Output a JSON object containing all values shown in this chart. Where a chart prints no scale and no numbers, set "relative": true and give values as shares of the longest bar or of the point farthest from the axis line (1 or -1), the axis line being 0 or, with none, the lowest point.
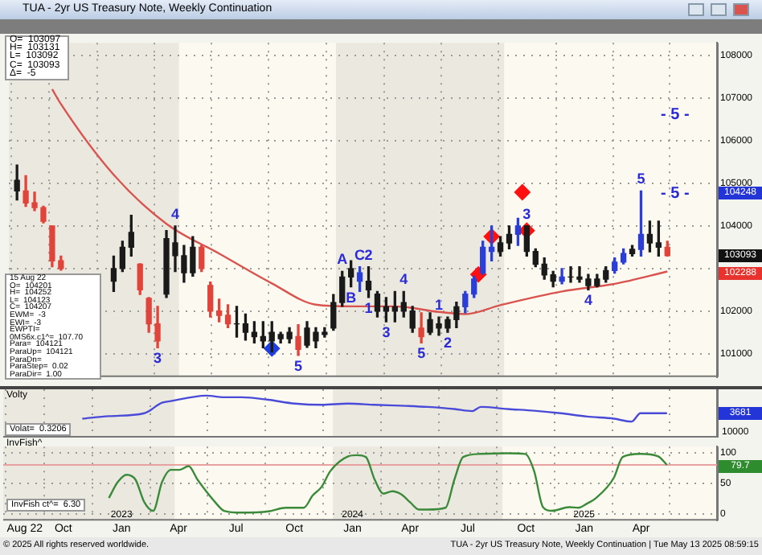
{
  "chart_data": [
    {
      "type": "candlestick",
      "title": "TUA - 2yr US Treasury Note, Weekly Continuation",
      "x": [
        "2022-07-11",
        "2022-07-25",
        "2022-08-08",
        "2022-08-22",
        "2022-09-05",
        "2022-09-19",
        "2022-12-12",
        "2022-12-26",
        "2023-01-09",
        "2023-01-23",
        "2023-02-06",
        "2023-02-20",
        "2023-03-06",
        "2023-03-20",
        "2023-04-03",
        "2023-04-17",
        "2023-05-01",
        "2023-05-15",
        "2023-05-29",
        "2023-06-12",
        "2023-06-26",
        "2023-07-10",
        "2023-07-24",
        "2023-08-07",
        "2023-08-21",
        "2023-09-04",
        "2023-09-18",
        "2023-10-02",
        "2023-10-16",
        "2023-10-30",
        "2023-11-13",
        "2023-11-27",
        "2023-12-11",
        "2023-12-25",
        "2024-01-08",
        "2024-01-22",
        "2024-02-05",
        "2024-02-19",
        "2024-03-04",
        "2024-03-18",
        "2024-04-01",
        "2024-04-15",
        "2024-04-29",
        "2024-05-13",
        "2024-05-27",
        "2024-06-10",
        "2024-06-24",
        "2024-07-08",
        "2024-07-22",
        "2024-08-05",
        "2024-08-19",
        "2024-09-02",
        "2024-09-16",
        "2024-09-30",
        "2024-10-14",
        "2024-10-28",
        "2024-11-11",
        "2024-11-25",
        "2024-12-09",
        "2024-12-23",
        "2025-01-06",
        "2025-01-20",
        "2025-02-03",
        "2025-02-17",
        "2025-03-03",
        "2025-03-17",
        "2025-03-31",
        "2025-04-14",
        "2025-04-28",
        "2025-05-12"
      ],
      "ohlc": [
        [
          104820,
          105430,
          104610,
          105070
        ],
        [
          104820,
          105180,
          104460,
          104540
        ],
        [
          104540,
          104790,
          104360,
          104430
        ],
        [
          104430,
          104460,
          104070,
          104110
        ],
        [
          104000,
          104000,
          103040,
          103180
        ],
        [
          103180,
          103290,
          102960,
          103000
        ],
        [
          102700,
          103290,
          102460,
          103000
        ],
        [
          103000,
          103640,
          102930,
          103500
        ],
        [
          103500,
          104250,
          103290,
          103850
        ],
        [
          103100,
          103110,
          102390,
          102500
        ],
        [
          102300,
          102320,
          101500,
          101700
        ],
        [
          101700,
          102110,
          101140,
          101300
        ],
        [
          102400,
          103890,
          102320,
          103700
        ],
        [
          103300,
          104000,
          102930,
          103600
        ],
        [
          102900,
          103540,
          102680,
          103300
        ],
        [
          102900,
          103750,
          102820,
          103500
        ],
        [
          103500,
          103540,
          102930,
          103000
        ],
        [
          102600,
          102680,
          101860,
          102000
        ],
        [
          102000,
          102280,
          101750,
          101900
        ],
        [
          101900,
          102150,
          101610,
          101700
        ],
        [
          101700,
          102110,
          101390,
          101700
        ],
        [
          101500,
          101930,
          101320,
          101700
        ],
        [
          101400,
          101750,
          101250,
          101500
        ],
        [
          101300,
          101750,
          101140,
          101400
        ],
        [
          101300,
          101750,
          101040,
          101500
        ],
        [
          101350,
          101500,
          101250,
          101450
        ],
        [
          101350,
          101610,
          101250,
          101500
        ],
        [
          101400,
          101680,
          100960,
          101100
        ],
        [
          101200,
          101750,
          101150,
          101600
        ],
        [
          101300,
          101610,
          101140,
          101500
        ],
        [
          101450,
          101610,
          101390,
          101500
        ],
        [
          101600,
          102390,
          101550,
          102200
        ],
        [
          102200,
          102930,
          102110,
          102800
        ],
        [
          102800,
          103180,
          102570,
          103000
        ],
        [
          102700,
          103040,
          102460,
          102900
        ],
        [
          102500,
          103040,
          102320,
          102700
        ],
        [
          102000,
          102460,
          101860,
          102400
        ],
        [
          102000,
          102320,
          101750,
          102100
        ],
        [
          102000,
          102460,
          101750,
          102100
        ],
        [
          102000,
          102460,
          101860,
          102200
        ],
        [
          101600,
          102110,
          101500,
          102000
        ],
        [
          101600,
          101960,
          101250,
          101400
        ],
        [
          101500,
          101960,
          101450,
          101800
        ],
        [
          101600,
          101860,
          101430,
          101700
        ],
        [
          101600,
          101860,
          101500,
          101800
        ],
        [
          101800,
          102210,
          101610,
          102100
        ],
        [
          102100,
          102460,
          101960,
          102400
        ],
        [
          102400,
          102820,
          102320,
          102750
        ],
        [
          102900,
          103640,
          102860,
          103500
        ],
        [
          103400,
          104000,
          103180,
          103500
        ],
        [
          103400,
          103750,
          103290,
          103600
        ],
        [
          103600,
          104000,
          103460,
          103800
        ],
        [
          103800,
          104180,
          103540,
          104000
        ],
        [
          103400,
          104000,
          103290,
          104000
        ],
        [
          103100,
          103460,
          103040,
          103400
        ],
        [
          102850,
          103250,
          102750,
          103100
        ],
        [
          102700,
          102930,
          102570,
          102850
        ],
        [
          102700,
          103000,
          102640,
          102800
        ],
        [
          102800,
          103040,
          102680,
          102800
        ],
        [
          102750,
          103040,
          102680,
          102800
        ],
        [
          102600,
          102860,
          102500,
          102750
        ],
        [
          102600,
          102860,
          102570,
          102750
        ],
        [
          102750,
          103040,
          102680,
          102950
        ],
        [
          102950,
          103250,
          102890,
          103150
        ],
        [
          103150,
          103460,
          103110,
          103350
        ],
        [
          103350,
          103540,
          103290,
          103450
        ],
        [
          103450,
          104820,
          103290,
          103800
        ],
        [
          103600,
          104110,
          103390,
          103800
        ],
        [
          103500,
          104110,
          103290,
          103600
        ],
        [
          103500,
          103640,
          103290,
          103300
        ]
      ],
      "colors": [
        "#1a1a1a",
        "#e0443a",
        "#e0443a",
        "#e0443a",
        "#e0443a",
        "#e0443a",
        "#1a1a1a",
        "#1a1a1a",
        "#1a1a1a",
        "#e0443a",
        "#e0443a",
        "#e0443a",
        "#1a1a1a",
        "#1a1a1a",
        "#1a1a1a",
        "#1a1a1a",
        "#e0443a",
        "#e0443a",
        "#e0443a",
        "#e0443a",
        "#1a1a1a",
        "#1a1a1a",
        "#1a1a1a",
        "#1a1a1a",
        "#1a1a1a",
        "#1a1a1a",
        "#1a1a1a",
        "#e0443a",
        "#1a1a1a",
        "#1a1a1a",
        "#1a1a1a",
        "#1a1a1a",
        "#1a1a1a",
        "#1a1a1a",
        "#2b3fd6",
        "#1a1a1a",
        "#1a1a1a",
        "#1a1a1a",
        "#1a1a1a",
        "#1a1a1a",
        "#1a1a1a",
        "#e0443a",
        "#1a1a1a",
        "#1a1a1a",
        "#1a1a1a",
        "#1a1a1a",
        "#2b3fd6",
        "#2b3fd6",
        "#2b3fd6",
        "#2b3fd6",
        "#1a1a1a",
        "#1a1a1a",
        "#2b3fd6",
        "#1a1a1a",
        "#1a1a1a",
        "#1a1a1a",
        "#1a1a1a",
        "#2b3fd6",
        "#1a1a1a",
        "#1a1a1a",
        "#1a1a1a",
        "#1a1a1a",
        "#1a1a1a",
        "#2b3fd6",
        "#2b3fd6",
        "#1a1a1a",
        "#2b3fd6",
        "#1a1a1a",
        "#1a1a1a",
        "#e0443a"
      ],
      "series": [
        {
          "type": "line",
          "color": "#d9534f",
          "x": [
            "2022-09-05",
            "2022-09-19",
            "2022-12-12",
            "2023-03-06",
            "2023-05-29",
            "2023-08-21",
            "2023-10-30",
            "2023-12-25",
            "2024-03-04",
            "2024-05-13",
            "2024-06-24",
            "2024-08-19",
            "2024-11-25",
            "2025-02-17",
            "2025-05-12"
          ],
          "values": [
            107210,
            106860,
            105200,
            104050,
            103350,
            102650,
            102150,
            102110,
            102110,
            101980,
            101930,
            102140,
            102460,
            102640,
            102930
          ]
        },
        {
          "type": "scatter",
          "marker": "diamond",
          "color": "#ff1010",
          "x": [
            "2024-07-15",
            "2024-08-05",
            "2024-09-23",
            "2024-09-30"
          ],
          "values": [
            102860,
            103750,
            104790,
            103890
          ]
        },
        {
          "type": "scatter",
          "marker": "diamond",
          "color": "#1f3fe0",
          "x": [
            "2023-08-21"
          ],
          "values": [
            101120
          ]
        }
      ],
      "xlim": [
        "2022-06-28",
        "2025-07-30"
      ],
      "xticks": [
        {
          "value": "2022-08-01",
          "label": null
        },
        {
          "value": "2022-10-01",
          "label": null
        },
        {
          "value": "2023-01-01",
          "label": null
        },
        {
          "value": "2023-04-01",
          "label": null
        },
        {
          "value": "2023-07-01",
          "label": null
        },
        {
          "value": "2023-10-01",
          "label": null
        },
        {
          "value": "2024-01-01",
          "label": null
        },
        {
          "value": "2024-04-01",
          "label": null
        },
        {
          "value": "2024-07-01",
          "label": null
        },
        {
          "value": "2024-10-01",
          "label": null
        },
        {
          "value": "2025-01-01",
          "label": null
        },
        {
          "value": "2025-04-01",
          "label": null
        }
      ],
      "ylim": [
        100450,
        108300
      ],
      "yticks": [
        101000,
        102000,
        {
          "value": 103000,
          "label": null
        },
        104000,
        105000,
        106000,
        107000,
        108000
      ],
      "tick_labels": "y",
      "grid": true,
      "bands": [
        {
          "axis": "x",
          "from": "2022-06-28",
          "to": "2023-03-26",
          "color": "#ebe8df"
        },
        {
          "axis": "x",
          "from": "2023-12-01",
          "to": "2024-08-25",
          "color": "#ebe8df"
        }
      ],
      "annotations": [
        "O=  103097",
        "H=  103131",
        "L=  103092",
        "C=  103093",
        "Δ=  -5",
        "15 Aug 22",
        "O=  104201",
        "H=  104252",
        "L=  104123",
        "C=  104207",
        "EWM=  -3",
        "EWI=  -3",
        "EWPTI=",
        "0MS6x.c1^=  107.70",
        "Para=  104121",
        "ParaUp=  104121",
        "ParaDn=",
        "ParaStep=  0.02",
        "ParaDir=  1.00",
        "- 5 -",
        "- 5 -",
        "104248",
        "103093",
        "102288",
        {
          "text": "4",
          "x": "2023-03-20",
          "y": 104000
        },
        {
          "text": "3",
          "x": "2023-02-20",
          "y": 101140
        },
        {
          "text": "5",
          "x": "2023-10-02",
          "y": 100960
        },
        {
          "text": "A",
          "x": "2023-12-11",
          "y": 102930
        },
        {
          "text": "C",
          "x": "2024-01-08",
          "y": 103040
        },
        {
          "text": "B",
          "x": "2023-12-25",
          "y": 102570
        },
        {
          "text": "1",
          "x": "2024-01-22",
          "y": 102320
        },
        {
          "text": "2",
          "x": "2024-01-22",
          "y": 103040
        },
        {
          "text": "3",
          "x": "2024-02-19",
          "y": 101750
        },
        {
          "text": "4",
          "x": "2024-03-18",
          "y": 102460
        },
        {
          "text": "1",
          "x": "2024-05-13",
          "y": 101860
        },
        {
          "text": "5",
          "x": "2024-04-15",
          "y": 101250
        },
        {
          "text": "2",
          "x": "2024-05-27",
          "y": 101500
        },
        {
          "text": "3",
          "x": "2024-09-30",
          "y": 104000
        },
        {
          "text": "4",
          "x": "2025-01-06",
          "y": 102500
        },
        {
          "text": "5",
          "x": "2025-03-31",
          "y": 104820
        }
      ]
    },
    {
      "type": "line",
      "title": "Volty",
      "relative": true,
      "color": "#4a4ad8",
      "x": [
        "2022-10-31",
        "2022-12-12",
        "2023-02-06",
        "2023-03-06",
        "2023-03-20",
        "2023-05-15",
        "2023-06-12",
        "2023-07-10",
        "2023-08-21",
        "2023-10-02",
        "2023-11-13",
        "2023-12-25",
        "2024-02-05",
        "2024-03-18",
        "2024-04-29",
        "2024-06-10",
        "2024-07-08",
        "2024-07-22",
        "2024-09-02",
        "2024-10-14",
        "2024-11-25",
        "2025-01-06",
        "2025-02-17",
        "2025-03-17",
        "2025-03-31",
        "2025-05-12"
      ],
      "values": [
        0.45,
        0.51,
        0.58,
        0.83,
        0.87,
        1,
        0.96,
        0.96,
        0.9,
        0.81,
        0.78,
        0.81,
        0.78,
        0.76,
        0.73,
        0.68,
        0.63,
        0.73,
        0.68,
        0.64,
        0.58,
        0.5,
        0.45,
        0.38,
        0.58,
        0.58
      ],
      "xlim": [
        "2022-06-28",
        "2025-07-30"
      ],
      "xticks": [
        {
          "value": "2022-08-01",
          "label": null
        },
        {
          "value": "2022-10-01",
          "label": null
        },
        {
          "value": "2023-01-01",
          "label": null
        },
        {
          "value": "2023-04-01",
          "label": null
        },
        {
          "value": "2023-07-01",
          "label": null
        },
        {
          "value": "2023-10-01",
          "label": null
        },
        {
          "value": "2024-01-01",
          "label": null
        },
        {
          "value": "2024-04-01",
          "label": null
        },
        {
          "value": "2024-07-01",
          "label": null
        },
        {
          "value": "2024-10-01",
          "label": null
        },
        {
          "value": "2025-01-01",
          "label": null
        },
        {
          "value": "2025-04-01",
          "label": null
        }
      ],
      "tick_labels": false,
      "grid": "x",
      "bands": [
        {
          "axis": "x",
          "from": "2022-06-28",
          "to": "2023-03-26",
          "color": "#ebe8df"
        },
        {
          "axis": "x",
          "from": "2023-12-01",
          "to": "2024-08-25",
          "color": "#ebe8df"
        }
      ],
      "annotations": [
        "Volat=  0.3206",
        "10000",
        "3681"
      ]
    },
    {
      "type": "line",
      "title": "InvFish^",
      "color": "#3a8a3a",
      "x": [
        "2022-12-12",
        "2022-12-26",
        "2023-01-09",
        "2023-01-23",
        "2023-02-06",
        "2023-02-20",
        "2023-03-06",
        "2023-03-20",
        "2023-04-03",
        "2023-04-17",
        "2023-05-01",
        "2023-05-29",
        "2023-06-12",
        "2023-07-10",
        "2023-08-21",
        "2023-09-18",
        "2023-10-16",
        "2023-10-30",
        "2023-11-13",
        "2023-11-27",
        "2023-12-25",
        "2024-01-08",
        "2024-01-22",
        "2024-02-05",
        "2024-02-19",
        "2024-03-04",
        "2024-03-18",
        "2024-04-01",
        "2024-04-15",
        "2024-04-29",
        "2024-05-27",
        "2024-06-10",
        "2024-06-24",
        "2024-07-22",
        "2024-09-02",
        "2024-09-30",
        "2024-10-14",
        "2024-10-28",
        "2024-11-11",
        "2024-12-09",
        "2024-12-23",
        "2025-01-06",
        "2025-01-20",
        "2025-02-17",
        "2025-03-03",
        "2025-03-31",
        "2025-04-28",
        "2025-05-12"
      ],
      "values": [
        26,
        52,
        64,
        56,
        19,
        5,
        52,
        72,
        72,
        78,
        56,
        19,
        5,
        2,
        4,
        10,
        10,
        30,
        44,
        70,
        94,
        96,
        93,
        56,
        33,
        37,
        32,
        19,
        7,
        7,
        10,
        56,
        93,
        98,
        99,
        98,
        70,
        11,
        5,
        11,
        10,
        17,
        26,
        59,
        93,
        98,
        94,
        80
      ],
      "xlim": [
        "2022-06-28",
        "2025-07-30"
      ],
      "xticks": [
        {
          "value": "2022-08-01",
          "label": "Aug 22"
        },
        {
          "value": "2022-10-01",
          "label": "Oct"
        },
        {
          "value": "2023-01-01",
          "label": "Jan"
        },
        {
          "value": "2023-04-01",
          "label": "Apr"
        },
        {
          "value": "2023-07-01",
          "label": "Jul"
        },
        {
          "value": "2023-10-01",
          "label": "Oct"
        },
        {
          "value": "2024-01-01",
          "label": "Jan"
        },
        {
          "value": "2024-04-01",
          "label": "Apr"
        },
        {
          "value": "2024-07-01",
          "label": "Jul"
        },
        {
          "value": "2024-10-01",
          "label": "Oct"
        },
        {
          "value": "2025-01-01",
          "label": "Jan"
        },
        {
          "value": "2025-04-01",
          "label": "Apr"
        }
      ],
      "x2lim": [
        "2022-06-28",
        "2025-07-30"
      ],
      "x2ticks": [
        {
          "value": "2023-01-01",
          "label": "2023"
        },
        {
          "value": "2024-01-01",
          "label": "2024"
        },
        {
          "value": "2025-01-01",
          "label": "2025"
        }
      ],
      "ylim": [
        -11,
        110
      ],
      "yticks": [
        0,
        50,
        100
      ],
      "grid": true,
      "bands": [
        {
          "axis": "x",
          "from": "2022-06-28",
          "to": "2023-03-26",
          "color": "#ebe8df"
        },
        {
          "axis": "x",
          "from": "2023-12-01",
          "to": "2024-08-25",
          "color": "#ebe8df"
        }
      ],
      "ref_lines": [
        {
          "axis": "y",
          "value": 80,
          "color": "#e8a0a0"
        }
      ],
      "annotations": [
        "InvFish ct^=  6.30",
        "79.7",
        "© 2025 All rights reserved worldwide.",
        "TUA - 2yr US Treasury Note, Weekly Continuation | Tue May 13 2025 08:59:15"
      ]
    }
  ]
}
